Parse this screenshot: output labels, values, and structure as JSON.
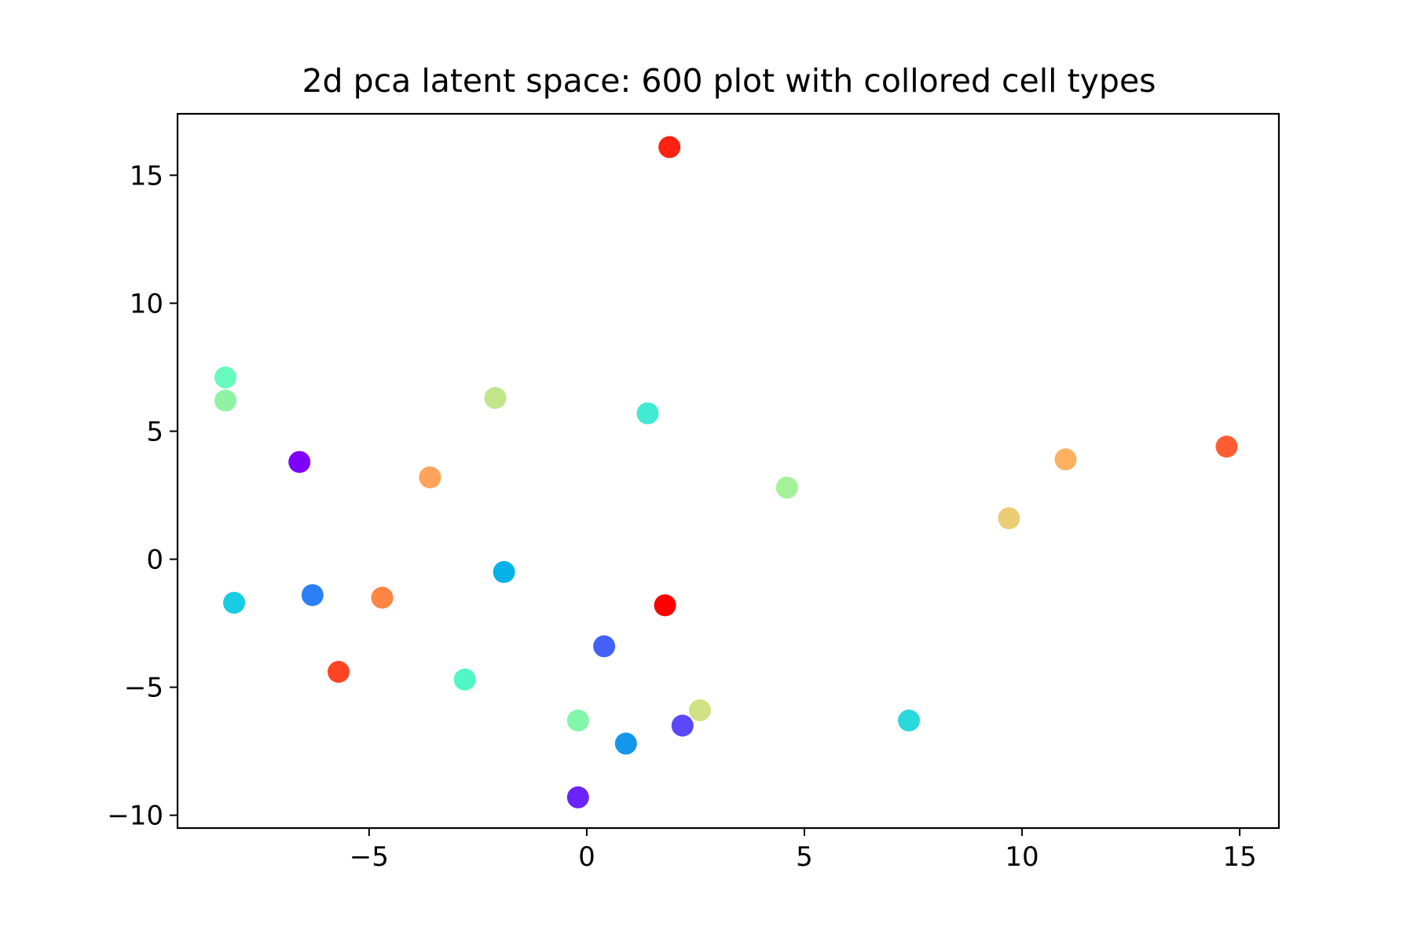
{
  "chart_data": {
    "type": "scatter",
    "title": "2d pca latent space: 600 plot with collored cell types",
    "xlabel": "",
    "ylabel": "",
    "xlim": [
      -9.4,
      15.9
    ],
    "ylim": [
      -10.5,
      17.4
    ],
    "x_ticks": [
      {
        "value": -5,
        "label": "−5"
      },
      {
        "value": 0,
        "label": "0"
      },
      {
        "value": 5,
        "label": "5"
      },
      {
        "value": 10,
        "label": "10"
      },
      {
        "value": 15,
        "label": "15"
      }
    ],
    "y_ticks": [
      {
        "value": -10,
        "label": "−10"
      },
      {
        "value": -5,
        "label": "−5"
      },
      {
        "value": 0,
        "label": "0"
      },
      {
        "value": 5,
        "label": "5"
      },
      {
        "value": 10,
        "label": "10"
      },
      {
        "value": 15,
        "label": "15"
      }
    ],
    "grid": false,
    "legend": false,
    "points": [
      {
        "x": 1.9,
        "y": 16.1,
        "color": "#fe2210"
      },
      {
        "x": -8.3,
        "y": 7.1,
        "color": "#66fbbd"
      },
      {
        "x": -8.3,
        "y": 6.2,
        "color": "#90f3a4"
      },
      {
        "x": -2.1,
        "y": 6.3,
        "color": "#c1e689"
      },
      {
        "x": 1.4,
        "y": 5.7,
        "color": "#40ead3"
      },
      {
        "x": -6.6,
        "y": 3.8,
        "color": "#8000ff"
      },
      {
        "x": -3.6,
        "y": 3.2,
        "color": "#ffa25a"
      },
      {
        "x": 4.6,
        "y": 2.8,
        "color": "#a5f19a"
      },
      {
        "x": 14.7,
        "y": 4.4,
        "color": "#ff5c32"
      },
      {
        "x": 11.0,
        "y": 3.9,
        "color": "#ffb061"
      },
      {
        "x": 9.7,
        "y": 1.6,
        "color": "#eccc74"
      },
      {
        "x": -1.9,
        "y": -0.5,
        "color": "#06b1e8"
      },
      {
        "x": -8.1,
        "y": -1.7,
        "color": "#18cde3"
      },
      {
        "x": -6.3,
        "y": -1.4,
        "color": "#2c7ff7"
      },
      {
        "x": -4.7,
        "y": -1.5,
        "color": "#ff8544"
      },
      {
        "x": 1.8,
        "y": -1.8,
        "color": "#ff0000"
      },
      {
        "x": 0.4,
        "y": -3.4,
        "color": "#4462f9"
      },
      {
        "x": -5.7,
        "y": -4.4,
        "color": "#ff4424"
      },
      {
        "x": -2.8,
        "y": -4.7,
        "color": "#52f6c6"
      },
      {
        "x": -0.2,
        "y": -6.3,
        "color": "#82f7a9"
      },
      {
        "x": 2.6,
        "y": -5.9,
        "color": "#cfe384"
      },
      {
        "x": 2.2,
        "y": -6.5,
        "color": "#5a48fa"
      },
      {
        "x": 0.9,
        "y": -7.2,
        "color": "#1596ed"
      },
      {
        "x": 7.4,
        "y": -6.3,
        "color": "#2adada"
      },
      {
        "x": -0.2,
        "y": -9.3,
        "color": "#6b23fb"
      }
    ]
  }
}
